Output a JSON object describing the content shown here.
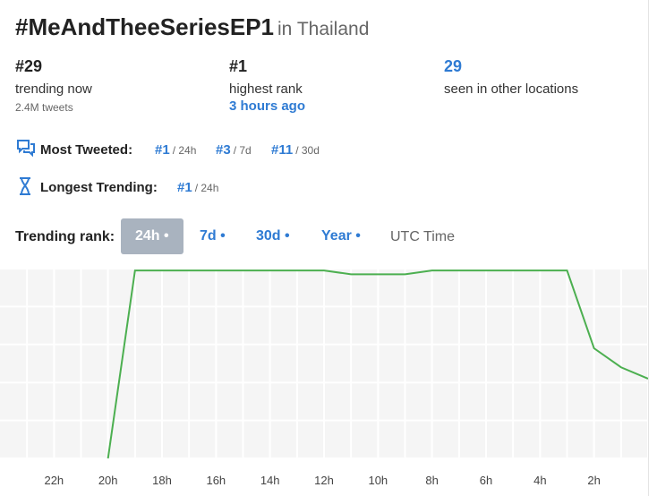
{
  "header": {
    "hashtag": "#MeAndTheeSeriesEP1",
    "location": "in Thailand"
  },
  "stats": [
    {
      "value": "#29",
      "label": "trending now",
      "detail": "2.4M tweets"
    },
    {
      "value": "#1",
      "label": "highest rank",
      "detail": "3 hours ago"
    },
    {
      "value": "29",
      "label": "seen in other locations"
    }
  ],
  "most_tweeted": {
    "label": "Most Tweeted:",
    "ranks": [
      {
        "rank": "#1",
        "period": "/ 24h"
      },
      {
        "rank": "#3",
        "period": "/ 7d"
      },
      {
        "rank": "#11",
        "period": "/ 30d"
      }
    ]
  },
  "longest_trending": {
    "label": "Longest Trending:",
    "ranks": [
      {
        "rank": "#1",
        "period": "/ 24h"
      }
    ]
  },
  "trending_rank": {
    "label": "Trending rank:",
    "tabs": [
      "24h •",
      "7d •",
      "30d •",
      "Year •"
    ],
    "active": 0,
    "timezone": "UTC Time"
  },
  "chart_data": {
    "type": "line",
    "x": [
      20,
      19,
      12,
      11,
      9,
      8,
      3,
      2,
      1,
      0
    ],
    "series": [
      {
        "color": "#4caf50",
        "values": [
          0,
          99,
          99,
          97,
          97,
          99,
          99,
          58,
          48,
          42
        ]
      }
    ],
    "xlim": [
      24,
      0
    ],
    "xticks": [
      {
        "value": 22,
        "label": "22h"
      },
      {
        "value": 20,
        "label": "20h"
      },
      {
        "value": 18,
        "label": "18h"
      },
      {
        "value": 16,
        "label": "16h"
      },
      {
        "value": 14,
        "label": "14h"
      },
      {
        "value": 12,
        "label": "12h"
      },
      {
        "value": 10,
        "label": "10h"
      },
      {
        "value": 8,
        "label": "8h"
      },
      {
        "value": 6,
        "label": "6h"
      },
      {
        "value": 4,
        "label": "4h"
      },
      {
        "value": 2,
        "label": "2h"
      }
    ],
    "ylim": [
      0,
      100
    ],
    "yticks": [
      0,
      20,
      40,
      60,
      80,
      100
    ],
    "grid": true
  }
}
